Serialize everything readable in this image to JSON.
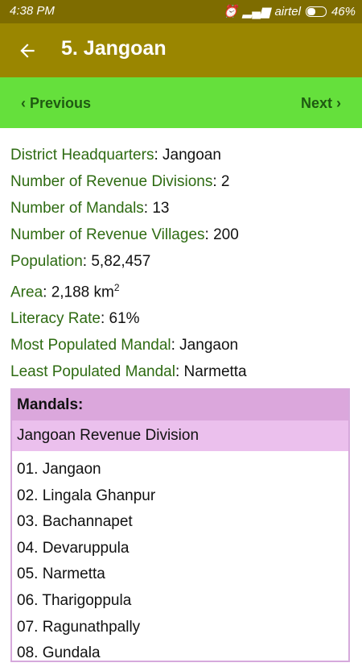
{
  "status": {
    "time": "4:38 PM",
    "carrier": "airtel",
    "battery": "46%"
  },
  "header": {
    "title": "5. Jangoan",
    "back_icon": "arrow-left-icon"
  },
  "nav": {
    "previous": "‹ Previous",
    "next": "Next ›"
  },
  "info": [
    {
      "label": "District Headquarters",
      "value": ": Jangoan"
    },
    {
      "label": "Number of Revenue Divisions",
      "value": ": 2"
    },
    {
      "label": "Number of Mandals",
      "value": ": 13"
    },
    {
      "label": "Number of Revenue Villages",
      "value": ": 200"
    },
    {
      "label": "Population",
      "value": ": 5,82,457"
    },
    {
      "label": "Area",
      "value": ": 2,188 km",
      "sup": "2"
    },
    {
      "label": "Literacy Rate",
      "value": ": 61%"
    },
    {
      "label": "Most Populated Mandal",
      "value": ": Jangaon"
    },
    {
      "label": "Least Populated Mandal",
      "value": ": Narmetta"
    }
  ],
  "mandals": {
    "heading": "Mandals:",
    "division": "Jangoan Revenue Division",
    "items": [
      "01. Jangaon",
      "02. Lingala Ghanpur",
      "03. Bachannapet",
      "04. Devaruppula",
      "05. Narmetta",
      "06. Tharigoppula",
      "07. Ragunathpally",
      "08. Gundala"
    ]
  },
  "colors": {
    "status_bar": "#7e6c00",
    "app_bar": "#9a8600",
    "nav_bar": "#65e03c",
    "label_green": "#2e6b12",
    "mandals_header": "#dba7dc",
    "division_header": "#ebc0ed"
  }
}
